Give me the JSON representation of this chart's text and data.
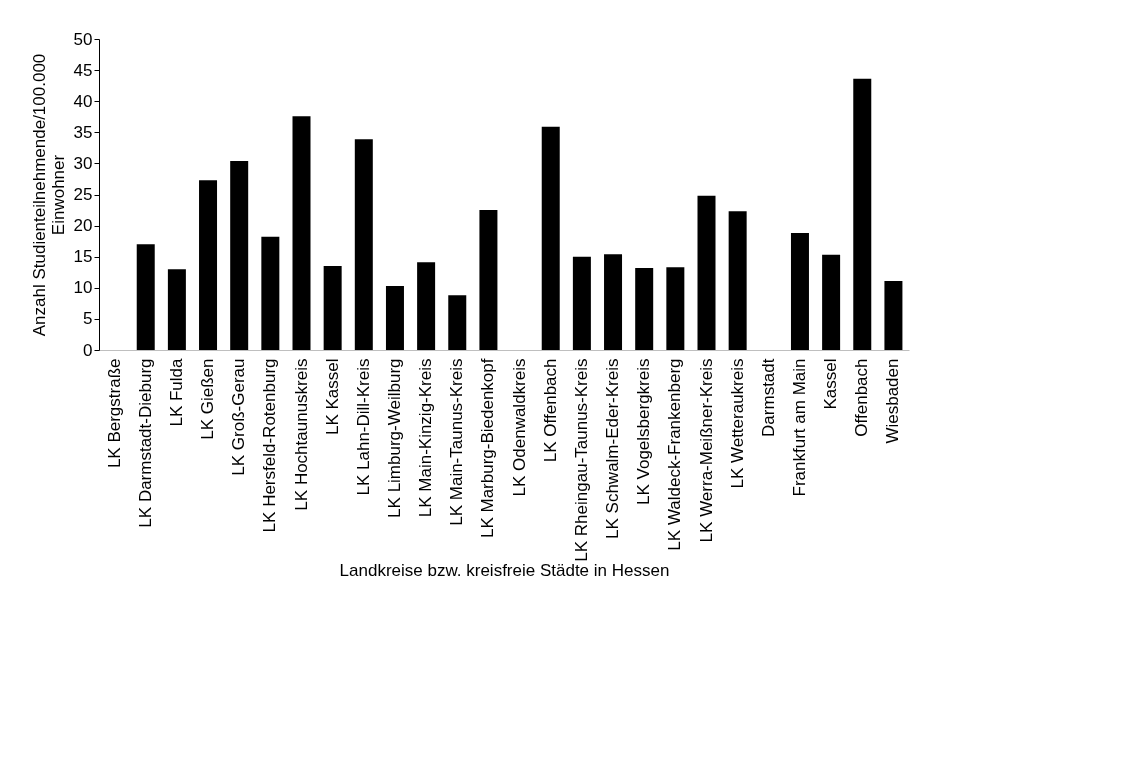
{
  "chart_data": {
    "type": "bar",
    "xlabel": "Landkreise bzw. kreisfreie Städte in Hessen",
    "ylabel": "Anzahl Studienteilnehmende/100.000 Einwohner",
    "categories": [
      "LK Bergstraße",
      "LK Darmstadt-Dieburg",
      "LK Fulda",
      "LK Gießen",
      "LK Groß-Gerau",
      "LK Hersfeld-Rotenburg",
      "LK Hochtaunuskreis",
      "LK Kassel",
      "LK Lahn-Dill-Kreis",
      "LK Limburg-Weilburg",
      "LK Main-Kinzig-Kreis",
      "LK Main-Taunus-Kreis",
      "LK Marburg-Biedenkopf",
      "LK Odenwaldkreis",
      "LK Offenbach",
      "LK Rheingau-Taunus-Kreis",
      "LK Schwalm-Eder-Kreis",
      "LK Vogelsbergkreis",
      "LK Waldeck-Frankenberg",
      "LK Werra-Meißner-Kreis",
      "LK Wetteraukreis",
      "Darmstadt",
      "Frankfurt am Main",
      "Kassel",
      "Offenbach",
      "Wiesbaden"
    ],
    "values": [
      0,
      17.0,
      13.0,
      27.3,
      30.4,
      18.2,
      37.6,
      13.5,
      33.9,
      10.3,
      14.1,
      8.8,
      22.5,
      0,
      35.9,
      15.0,
      15.4,
      13.2,
      13.3,
      24.8,
      22.3,
      0,
      18.8,
      15.3,
      43.6,
      11.1
    ],
    "color": "#000000",
    "ylim": [
      0,
      50
    ],
    "yticks": [
      0,
      5,
      10,
      15,
      20,
      25,
      30,
      35,
      40,
      45,
      50
    ],
    "grid": false
  }
}
